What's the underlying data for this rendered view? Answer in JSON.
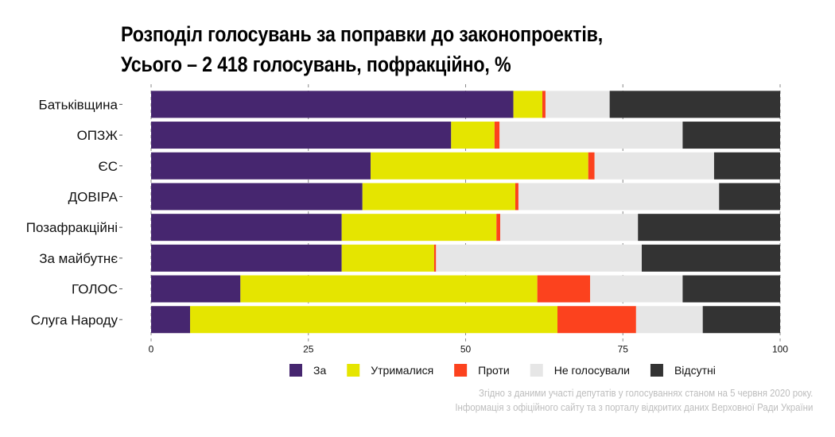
{
  "chart_data": {
    "type": "bar",
    "orientation": "horizontal",
    "stacked": true,
    "title": "Розподіл голосувань за поправки до законопроектів,",
    "subtitle": "Усього – 2 418 голосувань, пофракційно, %",
    "xlabel": "",
    "ylabel": "",
    "xlim": [
      0,
      100
    ],
    "x_ticks": [
      "0",
      "25",
      "50",
      "75",
      "100"
    ],
    "x_tick_values": [
      0,
      25,
      50,
      75,
      100
    ],
    "grid": true,
    "legend_position": "bottom",
    "categories": [
      "Батьківщина",
      "ОПЗЖ",
      "ЄС",
      "ДОВІРА",
      "Позафракційні",
      "За майбутнє",
      "ГОЛОС",
      "Слуга Народу"
    ],
    "series": [
      {
        "name": "За",
        "color": "#46266f",
        "values": [
          57.6,
          47.7,
          34.9,
          33.6,
          30.3,
          30.3,
          14.2,
          6.2
        ]
      },
      {
        "name": "Утрималися",
        "color": "#e5e500",
        "values": [
          4.6,
          6.9,
          34.6,
          24.3,
          24.6,
          14.7,
          47.2,
          58.4
        ]
      },
      {
        "name": "Проти",
        "color": "#fc421e",
        "values": [
          0.5,
          0.8,
          1.0,
          0.5,
          0.6,
          0.3,
          8.4,
          12.5
        ]
      },
      {
        "name": "Не голосували",
        "color": "#e6e6e6",
        "values": [
          10.2,
          29.1,
          19.0,
          31.9,
          21.9,
          32.7,
          14.7,
          10.6
        ]
      },
      {
        "name": "Відсутні",
        "color": "#333333",
        "values": [
          27.1,
          15.5,
          10.5,
          9.7,
          22.6,
          22.0,
          15.5,
          12.3
        ]
      }
    ],
    "caption": [
      "Згідно з даними участі депутатів у голосуваннях станом на 5 червня 2020 року.",
      "Інформація з офіційного сайту та з порталу відкритих даних Верховної Ради України"
    ]
  }
}
